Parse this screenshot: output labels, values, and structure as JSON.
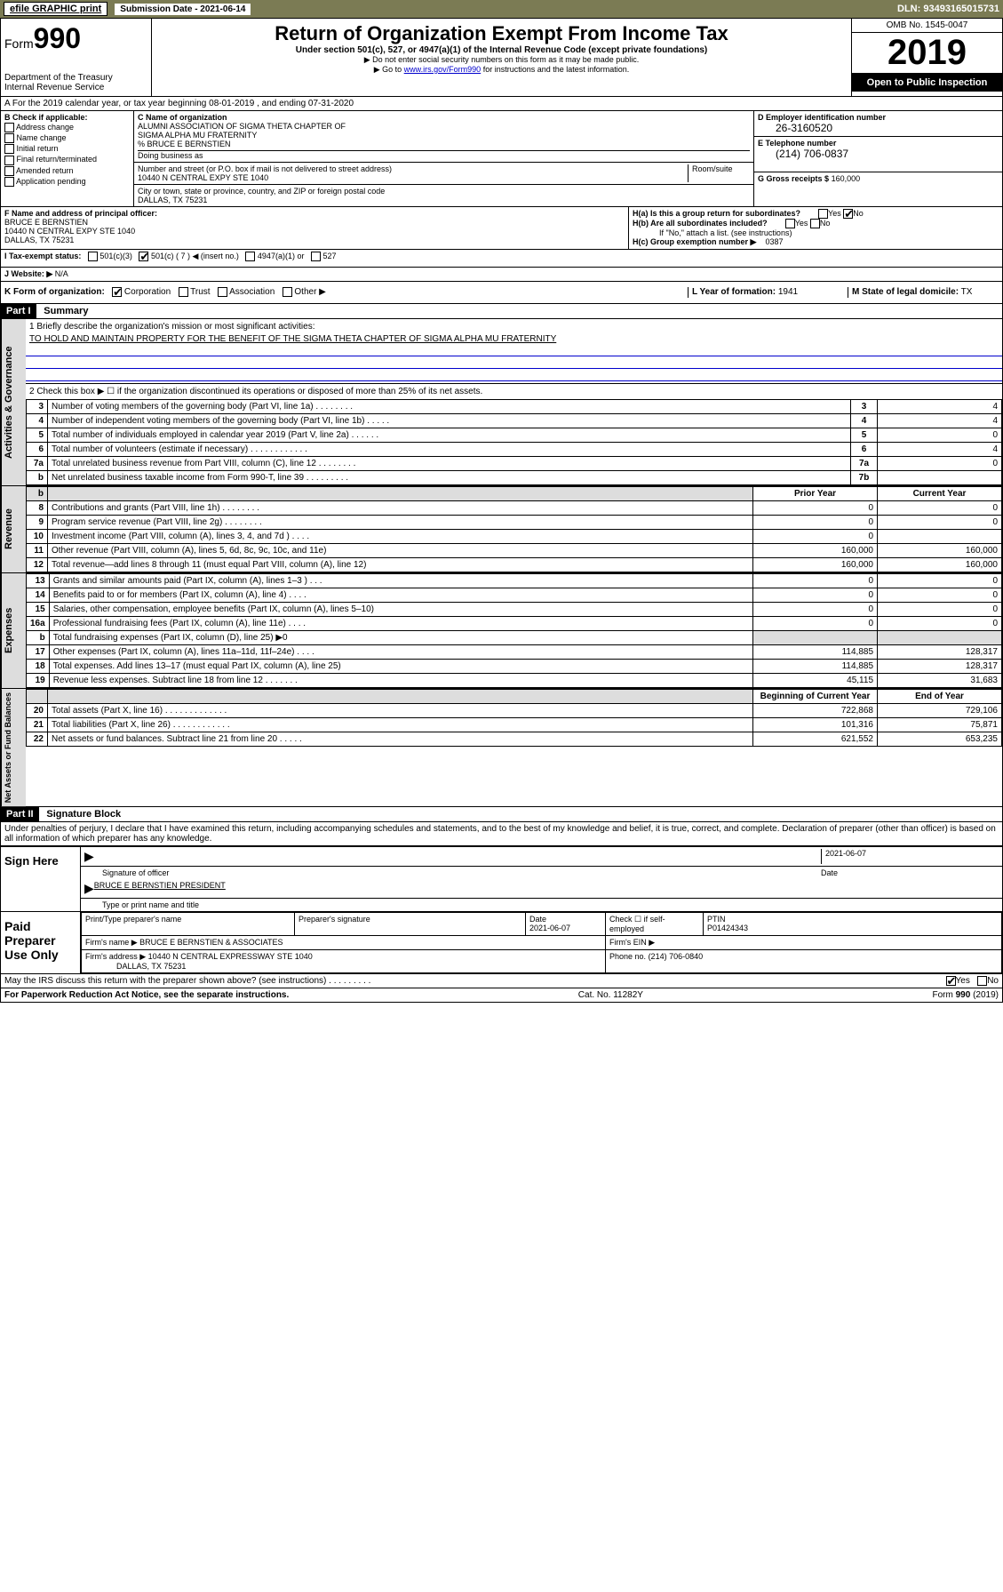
{
  "top": {
    "efile": "efile GRAPHIC print",
    "submission_date_label": "Submission Date - 2021-06-14",
    "dln": "DLN: 93493165015731"
  },
  "header": {
    "form_prefix": "Form",
    "form_num": "990",
    "dept": "Department of the Treasury",
    "irs": "Internal Revenue Service",
    "title": "Return of Organization Exempt From Income Tax",
    "subtitle": "Under section 501(c), 527, or 4947(a)(1) of the Internal Revenue Code (except private foundations)",
    "note1": "▶ Do not enter social security numbers on this form as it may be made public.",
    "note2_pre": "▶ Go to ",
    "note2_link": "www.irs.gov/Form990",
    "note2_post": " for instructions and the latest information.",
    "omb": "OMB No. 1545-0047",
    "year": "2019",
    "open": "Open to Public Inspection"
  },
  "line_a": "A For the 2019 calendar year, or tax year beginning 08-01-2019   , and ending 07-31-2020",
  "box_b": {
    "title": "B Check if applicable:",
    "items": [
      "Address change",
      "Name change",
      "Initial return",
      "Final return/terminated",
      "Amended return",
      "Application pending"
    ]
  },
  "box_c": {
    "label": "C Name of organization",
    "name1": "ALUMNI ASSOCIATION OF SIGMA THETA CHAPTER OF",
    "name2": "SIGMA ALPHA MU FRATERNITY",
    "care_of": "% BRUCE E BERNSTIEN",
    "dba_label": "Doing business as",
    "addr_label": "Number and street (or P.O. box if mail is not delivered to street address)",
    "room_label": "Room/suite",
    "addr": "10440 N CENTRAL EXPY STE 1040",
    "city_label": "City or town, state or province, country, and ZIP or foreign postal code",
    "city": "DALLAS, TX  75231"
  },
  "box_d": {
    "label": "D Employer identification number",
    "ein": "26-3160520"
  },
  "box_e": {
    "label": "E Telephone number",
    "tel": "(214) 706-0837"
  },
  "box_g": {
    "label": "G Gross receipts $",
    "val": "160,000"
  },
  "box_f": {
    "label": "F Name and address of principal officer:",
    "name": "BRUCE E BERNSTIEN",
    "addr": "10440 N CENTRAL EXPY STE 1040",
    "city": "DALLAS, TX  75231"
  },
  "box_h": {
    "ha": "H(a)  Is this a group return for subordinates?",
    "hb": "H(b)  Are all subordinates included?",
    "hb_note": "If \"No,\" attach a list. (see instructions)",
    "hc": "H(c)  Group exemption number ▶",
    "hc_val": "0387"
  },
  "box_i": {
    "label": "I   Tax-exempt status:",
    "opt501c7": "501(c) ( 7 ) ◀ (insert no.)"
  },
  "box_j": {
    "label": "J   Website: ▶",
    "val": "N/A"
  },
  "box_k": {
    "label": "K Form of organization:"
  },
  "box_l": {
    "label": "L Year of formation:",
    "val": "1941"
  },
  "box_m": {
    "label": "M State of legal domicile:",
    "val": "TX"
  },
  "part1": {
    "header": "Part I",
    "title": "Summary",
    "line1_label": "1   Briefly describe the organization's mission or most significant activities:",
    "mission": "TO HOLD AND MAINTAIN PROPERTY FOR THE BENEFIT OF THE SIGMA THETA CHAPTER OF SIGMA ALPHA MU FRATERNITY",
    "line2": "2   Check this box ▶ ☐  if the organization discontinued its operations or disposed of more than 25% of its net assets.",
    "rows_ag": [
      {
        "n": "3",
        "d": "Number of voting members of the governing body (Part VI, line 1a)   .    .    .    .    .    .    .    .",
        "c": "3",
        "v": "4"
      },
      {
        "n": "4",
        "d": "Number of independent voting members of the governing body (Part VI, line 1b)   .    .    .    .    .",
        "c": "4",
        "v": "4"
      },
      {
        "n": "5",
        "d": "Total number of individuals employed in calendar year 2019 (Part V, line 2a)   .    .    .    .    .    .",
        "c": "5",
        "v": "0"
      },
      {
        "n": "6",
        "d": "Total number of volunteers (estimate if necessary)   .    .    .    .    .    .    .    .    .    .    .    .",
        "c": "6",
        "v": "4"
      },
      {
        "n": "7a",
        "d": "Total unrelated business revenue from Part VIII, column (C), line 12   .    .    .    .    .    .    .    .",
        "c": "7a",
        "v": "0"
      },
      {
        "n": "b",
        "d": "Net unrelated business taxable income from Form 990-T, line 39   .    .    .    .    .    .    .    .    .",
        "c": "7b",
        "v": ""
      }
    ],
    "prior_year": "Prior Year",
    "current_year": "Current Year",
    "rows_rev": [
      {
        "n": "8",
        "d": "Contributions and grants (Part VIII, line 1h)   .    .    .    .    .    .    .    .",
        "p": "0",
        "c": "0"
      },
      {
        "n": "9",
        "d": "Program service revenue (Part VIII, line 2g)   .    .    .    .    .    .    .    .",
        "p": "0",
        "c": "0"
      },
      {
        "n": "10",
        "d": "Investment income (Part VIII, column (A), lines 3, 4, and 7d )   .    .    .    .",
        "p": "0",
        "c": ""
      },
      {
        "n": "11",
        "d": "Other revenue (Part VIII, column (A), lines 5, 6d, 8c, 9c, 10c, and 11e)",
        "p": "160,000",
        "c": "160,000"
      },
      {
        "n": "12",
        "d": "Total revenue—add lines 8 through 11 (must equal Part VIII, column (A), line 12)",
        "p": "160,000",
        "c": "160,000"
      }
    ],
    "rows_exp": [
      {
        "n": "13",
        "d": "Grants and similar amounts paid (Part IX, column (A), lines 1–3 )   .    .    .",
        "p": "0",
        "c": "0"
      },
      {
        "n": "14",
        "d": "Benefits paid to or for members (Part IX, column (A), line 4)   .    .    .    .",
        "p": "0",
        "c": "0"
      },
      {
        "n": "15",
        "d": "Salaries, other compensation, employee benefits (Part IX, column (A), lines 5–10)",
        "p": "0",
        "c": "0"
      },
      {
        "n": "16a",
        "d": "Professional fundraising fees (Part IX, column (A), line 11e)   .    .    .    .",
        "p": "0",
        "c": "0"
      },
      {
        "n": "b",
        "d": "Total fundraising expenses (Part IX, column (D), line 25) ▶0",
        "p": "",
        "c": "",
        "shade": true
      },
      {
        "n": "17",
        "d": "Other expenses (Part IX, column (A), lines 11a–11d, 11f–24e)   .    .    .    .",
        "p": "114,885",
        "c": "128,317"
      },
      {
        "n": "18",
        "d": "Total expenses. Add lines 13–17 (must equal Part IX, column (A), line 25)",
        "p": "114,885",
        "c": "128,317"
      },
      {
        "n": "19",
        "d": "Revenue less expenses. Subtract line 18 from line 12   .    .    .    .    .    .    .",
        "p": "45,115",
        "c": "31,683"
      }
    ],
    "begin_year": "Beginning of Current Year",
    "end_year": "End of Year",
    "rows_net": [
      {
        "n": "20",
        "d": "Total assets (Part X, line 16)   .    .    .    .    .    .    .    .    .    .    .    .    .",
        "p": "722,868",
        "c": "729,106"
      },
      {
        "n": "21",
        "d": "Total liabilities (Part X, line 26)   .    .    .    .    .    .    .    .    .    .    .    .",
        "p": "101,316",
        "c": "75,871"
      },
      {
        "n": "22",
        "d": "Net assets or fund balances. Subtract line 21 from line 20   .    .    .    .    .",
        "p": "621,552",
        "c": "653,235"
      }
    ]
  },
  "part2": {
    "header": "Part II",
    "title": "Signature Block",
    "declaration": "Under penalties of perjury, I declare that I have examined this return, including accompanying schedules and statements, and to the best of my knowledge and belief, it is true, correct, and complete. Declaration of preparer (other than officer) is based on all information of which preparer has any knowledge."
  },
  "sign": {
    "label": "Sign Here",
    "sig_officer": "Signature of officer",
    "date": "2021-06-07",
    "date_label": "Date",
    "name": "BRUCE E BERNSTIEN PRESIDENT",
    "name_label": "Type or print name and title"
  },
  "paid": {
    "label": "Paid Preparer Use Only",
    "h1": "Print/Type preparer's name",
    "h2": "Preparer's signature",
    "h3": "Date",
    "h3v": "2021-06-07",
    "h4": "Check ☐ if self-employed",
    "h5": "PTIN",
    "h5v": "P01424343",
    "firm_name_label": "Firm's name    ▶",
    "firm_name": "BRUCE E BERNSTIEN & ASSOCIATES",
    "firm_ein_label": "Firm's EIN ▶",
    "firm_addr_label": "Firm's address ▶",
    "firm_addr": "10440 N CENTRAL EXPRESSWAY STE 1040",
    "firm_city": "DALLAS, TX  75231",
    "phone_label": "Phone no.",
    "phone": "(214) 706-0840"
  },
  "footer": {
    "discuss": "May the IRS discuss this return with the preparer shown above? (see instructions)   .    .    .    .    .    .    .    .    .",
    "paperwork": "For Paperwork Reduction Act Notice, see the separate instructions.",
    "cat": "Cat. No. 11282Y",
    "form": "Form 990 (2019)"
  },
  "labels": {
    "yes": "Yes",
    "no": "No",
    "501c3": "501(c)(3)",
    "4947": "4947(a)(1) or",
    "527": "527",
    "corp": "Corporation",
    "trust": "Trust",
    "assoc": "Association",
    "other": "Other ▶"
  },
  "side": {
    "ag": "Activities & Governance",
    "rev": "Revenue",
    "exp": "Expenses",
    "net": "Net Assets or Fund Balances"
  }
}
